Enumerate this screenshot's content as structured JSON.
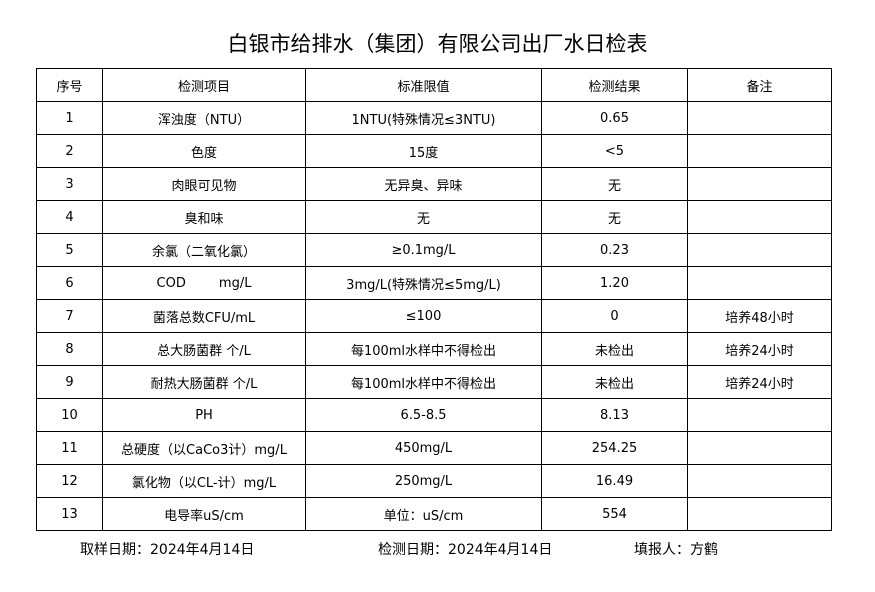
{
  "header": {
    "title": "白银市给排水（集团）有限公司出厂水日检表"
  },
  "table": {
    "columns": [
      "序号",
      "检测项目",
      "标准限值",
      "检测结果",
      "备注"
    ],
    "rows": [
      {
        "no": "1",
        "item": "浑浊度（NTU）",
        "standard": "1NTU(特殊情况≤3NTU)",
        "result": "0.65"
      },
      {
        "no": "2",
        "item": "色度",
        "standard": "15度",
        "result": "<5"
      },
      {
        "no": "3",
        "item": "肉眼可见物",
        "standard": "无异臭、异味",
        "result": "无"
      },
      {
        "no": "4",
        "item": "臭和味",
        "standard": "无",
        "result": "无"
      },
      {
        "no": "5",
        "item": "余氯（二氧化氯）",
        "standard": "≥0.1mg/L",
        "result": "0.23"
      },
      {
        "no": "6",
        "item": "COD        mg/L",
        "standard": "3mg/L(特殊情况≤5mg/L)",
        "result": "1.20"
      },
      {
        "no": "7",
        "item": "菌落总数CFU/mL",
        "standard": "≤100",
        "result": "0",
        "note": "培养48小时"
      },
      {
        "no": "8",
        "item": "总大肠菌群 个/L",
        "standard": "每100ml水样中不得检出",
        "result": "未检出",
        "note": "培养24小时"
      },
      {
        "no": "9",
        "item": "耐热大肠菌群 个/L",
        "standard": "每100ml水样中不得检出",
        "result": "未检出",
        "note": "培养24小时"
      },
      {
        "no": "10",
        "item": "PH",
        "standard": "6.5-8.5",
        "result": "8.13"
      },
      {
        "no": "11",
        "item": "总硬度（以CaCo3计）mg/L",
        "standard": "450mg/L",
        "result": "254.25"
      },
      {
        "no": "12",
        "item": "氯化物（以CL-计）mg/L",
        "standard": "250mg/L",
        "result": "16.49"
      },
      {
        "no": "13",
        "item": "电导率uS/cm",
        "standard": "单位：uS/cm",
        "result": "554"
      }
    ]
  },
  "footer": {
    "sampling_date": "取样日期：2024年4月14日",
    "test_date": "检测日期：2024年4月14日",
    "reporter": "填报人：方鹤"
  }
}
